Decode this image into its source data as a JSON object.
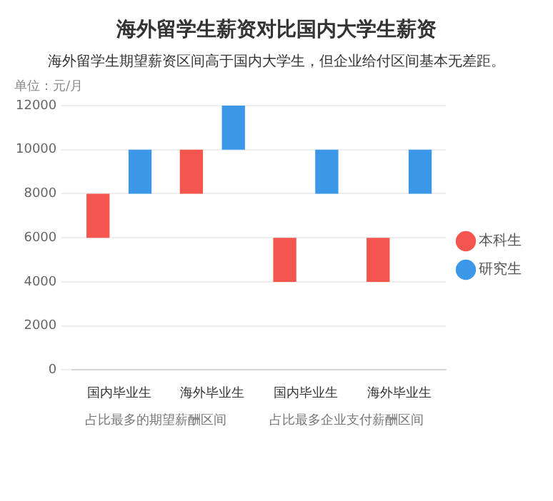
{
  "chart_data": {
    "type": "bar",
    "title": "海外留学生薪资对比国内大学生薪资",
    "subtitle": "海外留学生期望薪资区间高于国内大学生，但企业给付区间基本无差距。",
    "ylabel": "单位：元/月",
    "categories": [
      "国内毕业生",
      "海外毕业生",
      "国内毕业生",
      "海外毕业生"
    ],
    "series": [
      {
        "name": "本科生",
        "color": "#f4554f",
        "base": [
          6000,
          8000,
          4000,
          4000
        ],
        "values": [
          2000,
          2000,
          2000,
          2000
        ]
      },
      {
        "name": "研究生",
        "color": "#3b98e8",
        "base": [
          8000,
          10000,
          8000,
          8000
        ],
        "values": [
          2000,
          2000,
          2000,
          2000
        ]
      }
    ],
    "ylim": [
      0,
      12000
    ],
    "yticks": [
      0,
      2000,
      4000,
      6000,
      8000,
      10000,
      12000
    ],
    "grid": "y",
    "legend": "right",
    "annotations": [
      "占比最多的期望薪酬区间",
      "占比最多企业支付薪酬区间"
    ]
  }
}
